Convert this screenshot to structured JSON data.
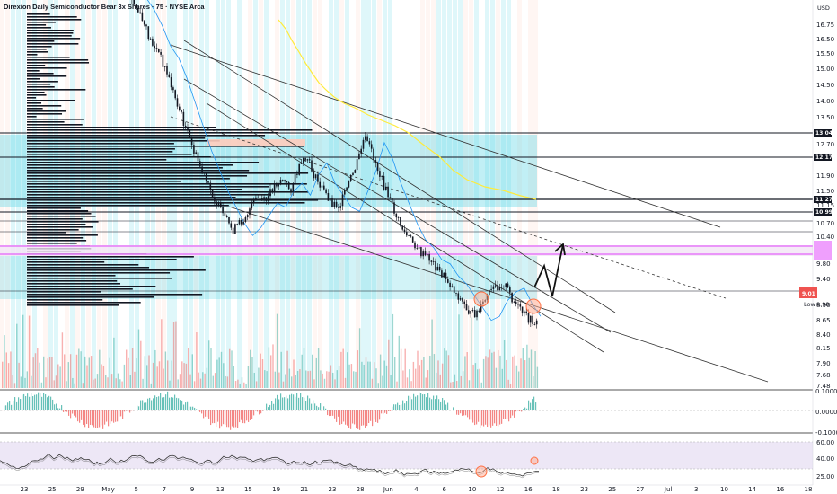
{
  "title": "Direxion Daily Semiconductor Bear 3x Shares · 75 · NYSE Arca",
  "currency": "USD",
  "colors": {
    "up": "#26a69a",
    "down": "#ef5350",
    "candle": "#131722",
    "band_blue": "#4dd0e1",
    "band_peach": "#ffccbc",
    "magenta": "#e040fb",
    "yellow": "#ffeb3b",
    "ma": "#2196f3",
    "circle": "#ff7043",
    "rsi_bg": "#ede7f6"
  },
  "price_axis": {
    "ticks": [
      "16.75",
      "16.50",
      "15.50",
      "15.00",
      "14.50",
      "14.00",
      "13.50",
      "12.70",
      "11.90",
      "11.50",
      "11.15",
      "10.70",
      "10.40",
      "9.80",
      "9.40",
      "8.90",
      "8.65",
      "8.40",
      "8.15",
      "7.90",
      "7.68",
      "7.48"
    ],
    "labels": [
      {
        "text": "13.04",
        "kind": "dark"
      },
      {
        "text": "12.17",
        "kind": "dark"
      },
      {
        "text": "11.27",
        "kind": "dark"
      },
      {
        "text": "10.99",
        "kind": "dark"
      },
      {
        "text": "9.01",
        "kind": "red"
      },
      {
        "text": "Low",
        "kind": "plain"
      },
      {
        "text": "8.98",
        "kind": "plain"
      }
    ]
  },
  "oscillator_axis": {
    "ticks": [
      "0.1000",
      "0.0000",
      "-0.1000"
    ]
  },
  "rsi_axis": {
    "ticks": [
      "60.00",
      "40.00",
      "25.00"
    ]
  },
  "time_axis": {
    "labels": [
      "23",
      "25",
      "29",
      "May",
      "5",
      "7",
      "9",
      "13",
      "15",
      "19",
      "21",
      "23",
      "28",
      "Jun",
      "4",
      "6",
      "10",
      "12",
      "16",
      "18",
      "23",
      "25",
      "27",
      "Jul",
      "3",
      "10",
      "14",
      "16",
      "18"
    ]
  },
  "chart_data": {
    "type": "line",
    "title": "Direxion Daily Semiconductor Bear 3x Shares · 75 · NYSE Arca",
    "xlabel": "",
    "ylabel": "",
    "ylim": [
      7.48,
      17.0
    ],
    "price_series_close": [
      17.2,
      16.9,
      16.5,
      16.0,
      15.7,
      15.2,
      14.6,
      14.0,
      13.4,
      12.9,
      12.4,
      12.0,
      11.6,
      11.3,
      11.5,
      11.8,
      12.1,
      12.0,
      12.4,
      12.6,
      12.3,
      12.8,
      13.1,
      12.6,
      12.3,
      12.0,
      11.9,
      12.4,
      12.9,
      13.6,
      13.2,
      12.6,
      12.1,
      11.6,
      11.2,
      11.0,
      10.7,
      10.6,
      10.3,
      10.1,
      9.8,
      9.5,
      9.2,
      9.3,
      9.7,
      9.9,
      10.0,
      9.6,
      9.3,
      9.1,
      9.0
    ],
    "horizontal_levels": [
      13.04,
      12.17,
      11.27,
      10.99
    ],
    "last_price": 9.01,
    "low": 8.98
  }
}
